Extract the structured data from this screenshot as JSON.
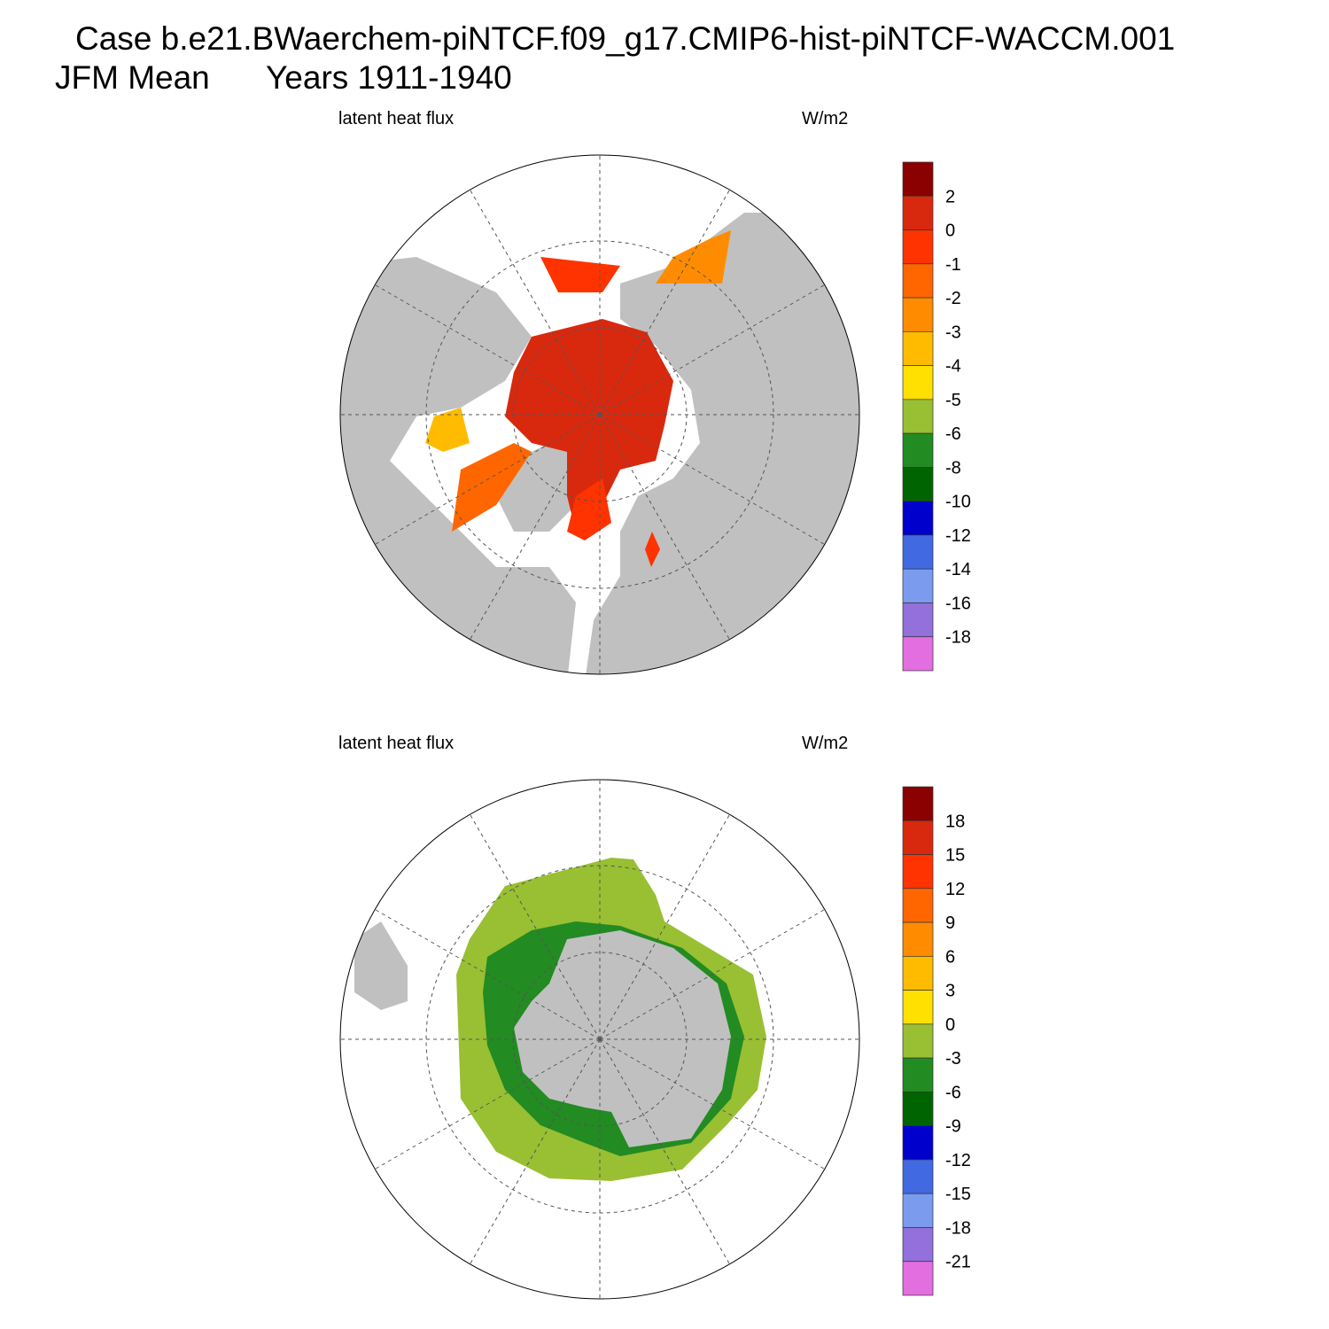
{
  "header": {
    "title": "Case b.e21.BWaerchem-piNTCF.f09_g17.CMIP6-hist-piNTCF-WACCM.001",
    "season": "JFM Mean",
    "years": "Years 1911-1940"
  },
  "panels": [
    {
      "left_label": "latent heat flux",
      "right_label": "W/m2",
      "colorbar": {
        "colors": [
          "#8b0000",
          "#d8290f",
          "#ff3300",
          "#ff6600",
          "#ff8c00",
          "#ffbb00",
          "#ffe000",
          "#99bf33",
          "#228b22",
          "#006400",
          "#0000cd",
          "#4169e1",
          "#7b9bef",
          "#9370db",
          "#e36ee0"
        ],
        "labels": [
          2,
          0,
          -1,
          -2,
          -3,
          -4,
          -5,
          -6,
          -8,
          -10,
          -12,
          -14,
          -16,
          -18
        ]
      }
    },
    {
      "left_label": "latent heat flux",
      "right_label": "W/m2",
      "colorbar": {
        "colors": [
          "#8b0000",
          "#d8290f",
          "#ff3300",
          "#ff6600",
          "#ff8c00",
          "#ffbb00",
          "#ffe000",
          "#99bf33",
          "#228b22",
          "#006400",
          "#0000cd",
          "#4169e1",
          "#7b9bef",
          "#9370db",
          "#e36ee0"
        ],
        "labels": [
          18,
          15,
          12,
          9,
          6,
          3,
          0,
          -3,
          -6,
          -9,
          -12,
          -15,
          -18,
          -21
        ]
      }
    }
  ]
}
